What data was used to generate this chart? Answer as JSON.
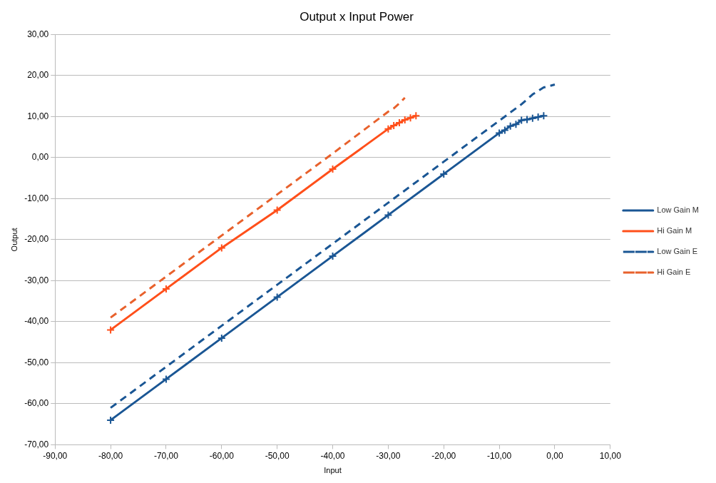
{
  "chart_data": {
    "type": "line",
    "title": "Output x Input Power",
    "xlabel": "Input",
    "ylabel": "Output",
    "xlim": [
      -90,
      10
    ],
    "xticks": [
      {
        "value": -90,
        "label": "-90,00"
      },
      {
        "value": -80,
        "label": "-80,00"
      },
      {
        "value": -70,
        "label": "-70,00"
      },
      {
        "value": -60,
        "label": "-60,00"
      },
      {
        "value": -50,
        "label": "-50,00"
      },
      {
        "value": -40,
        "label": "-40,00"
      },
      {
        "value": -30,
        "label": "-30,00"
      },
      {
        "value": -20,
        "label": "-20,00"
      },
      {
        "value": -10,
        "label": "-10,00"
      },
      {
        "value": 0,
        "label": "0,00"
      },
      {
        "value": 10,
        "label": "10,00"
      }
    ],
    "ylim": [
      -70,
      30
    ],
    "yticks": [
      {
        "value": -70,
        "label": "-70,00"
      },
      {
        "value": -60,
        "label": "-60,00"
      },
      {
        "value": -50,
        "label": "-50,00"
      },
      {
        "value": -40,
        "label": "-40,00"
      },
      {
        "value": -30,
        "label": "-30,00"
      },
      {
        "value": -20,
        "label": "-20,00"
      },
      {
        "value": -10,
        "label": "-10,00"
      },
      {
        "value": 0,
        "label": "0,00"
      },
      {
        "value": 10,
        "label": "10,00"
      },
      {
        "value": 20,
        "label": "20,00"
      },
      {
        "value": 30,
        "label": "30,00"
      }
    ],
    "grid": "y",
    "legend": "right",
    "series": [
      {
        "name": "Low Gain M",
        "color": "#1a5694",
        "marker": "cross",
        "line_style": "solid",
        "x": [
          -80,
          -70,
          -60,
          -50,
          -40,
          -30,
          -20,
          -10,
          -9,
          -8,
          -7,
          -6,
          -5,
          -4,
          -3,
          -2
        ],
        "values": [
          -64,
          -54,
          -44,
          -34,
          -24,
          -14,
          -4,
          6,
          6.7,
          7.7,
          8.1,
          9.1,
          9.3,
          9.6,
          9.9,
          10.2
        ]
      },
      {
        "name": "Hi Gain M",
        "color": "#ff4f1a",
        "marker": "cross",
        "line_style": "solid",
        "x": [
          -80,
          -70,
          -60,
          -50,
          -40,
          -30,
          -29,
          -28,
          -27,
          -26,
          -25
        ],
        "values": [
          -42,
          -32,
          -22,
          -12.8,
          -2.8,
          7,
          7.8,
          8.5,
          9.2,
          9.7,
          10.2
        ]
      },
      {
        "name": "Low Gain E",
        "color": "#1a5694",
        "marker": "none",
        "line_style": "dashed",
        "x": [
          -80,
          -70,
          -60,
          -50,
          -40,
          -30,
          -20,
          -10,
          -6,
          -4,
          -2,
          0
        ],
        "values": [
          -61,
          -51,
          -41,
          -31,
          -21,
          -11,
          -1,
          9,
          13,
          15.4,
          17.1,
          17.8
        ]
      },
      {
        "name": "Hi Gain E",
        "color": "#e8612c",
        "marker": "none",
        "line_style": "dashed",
        "x": [
          -80,
          -70,
          -60,
          -50,
          -40,
          -30,
          -29,
          -28,
          -27
        ],
        "values": [
          -39,
          -29,
          -19,
          -9,
          1,
          11.2,
          12,
          13.2,
          14.6
        ]
      }
    ]
  }
}
